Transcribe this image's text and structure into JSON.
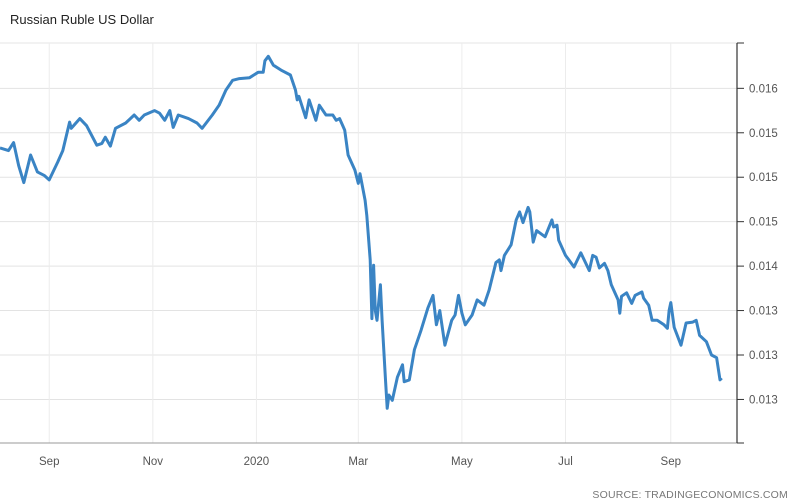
{
  "chart_data": {
    "type": "line",
    "title": "Russian Ruble US Dollar",
    "source": "SOURCE: TRADINGECONOMICS.COM",
    "xlabel": "",
    "ylabel": "",
    "line_color": "#3a84c4",
    "grid": true,
    "y_axis_side": "right",
    "xlim": [
      "2019-08-03",
      "2020-10-10"
    ],
    "ylim": [
      0.01201,
      0.01651
    ],
    "x_ticks": [
      {
        "date": "2019-09-01",
        "label": "Sep"
      },
      {
        "date": "2019-11-01",
        "label": "Nov"
      },
      {
        "date": "2020-01-01",
        "label": "2020"
      },
      {
        "date": "2020-03-01",
        "label": "Mar"
      },
      {
        "date": "2020-05-01",
        "label": "May"
      },
      {
        "date": "2020-07-01",
        "label": "Jul"
      },
      {
        "date": "2020-09-01",
        "label": "Sep"
      }
    ],
    "y_ticks": [
      {
        "value": 0.016,
        "label": "0.016"
      },
      {
        "value": 0.0155,
        "label": "0.015"
      },
      {
        "value": 0.015,
        "label": "0.015"
      },
      {
        "value": 0.0145,
        "label": "0.015"
      },
      {
        "value": 0.014,
        "label": "0.014"
      },
      {
        "value": 0.0135,
        "label": "0.013"
      },
      {
        "value": 0.013,
        "label": "0.013"
      },
      {
        "value": 0.0125,
        "label": "0.013"
      }
    ],
    "series": [
      {
        "x": [
          "2019-08-03",
          "2019-08-08",
          "2019-08-11",
          "2019-08-14",
          "2019-08-17",
          "2019-08-21",
          "2019-08-25",
          "2019-08-29",
          "2019-09-01",
          "2019-09-06",
          "2019-09-09",
          "2019-09-13",
          "2019-09-14",
          "2019-09-19",
          "2019-09-23",
          "2019-09-29",
          "2019-10-02",
          "2019-10-04",
          "2019-10-07",
          "2019-10-10",
          "2019-10-16",
          "2019-10-21",
          "2019-10-24",
          "2019-10-27",
          "2019-11-02",
          "2019-11-05",
          "2019-11-08",
          "2019-11-11",
          "2019-11-13",
          "2019-11-16",
          "2019-11-22",
          "2019-11-27",
          "2019-11-30",
          "2019-12-06",
          "2019-12-10",
          "2019-12-14",
          "2019-12-18",
          "2019-12-22",
          "2019-12-28",
          "2020-01-02",
          "2020-01-05",
          "2020-01-06",
          "2020-01-08",
          "2020-01-11",
          "2020-01-16",
          "2020-01-21",
          "2020-01-24",
          "2020-01-25",
          "2020-01-26",
          "2020-01-30",
          "2020-02-01",
          "2020-02-05",
          "2020-02-07",
          "2020-02-11",
          "2020-02-15",
          "2020-02-17",
          "2020-02-19",
          "2020-02-22",
          "2020-02-24",
          "2020-02-28",
          "2020-03-01",
          "2020-03-02",
          "2020-03-05",
          "2020-03-06",
          "2020-03-08",
          "2020-03-09",
          "2020-03-10",
          "2020-03-11",
          "2020-03-12",
          "2020-03-14",
          "2020-03-15",
          "2020-03-17",
          "2020-03-18",
          "2020-03-19",
          "2020-03-21",
          "2020-03-24",
          "2020-03-27",
          "2020-03-28",
          "2020-03-31",
          "2020-04-03",
          "2020-04-07",
          "2020-04-11",
          "2020-04-14",
          "2020-04-16",
          "2020-04-18",
          "2020-04-21",
          "2020-04-25",
          "2020-04-27",
          "2020-04-29",
          "2020-05-01",
          "2020-05-03",
          "2020-05-07",
          "2020-05-10",
          "2020-05-14",
          "2020-05-17",
          "2020-05-21",
          "2020-05-23",
          "2020-05-24",
          "2020-05-26",
          "2020-05-30",
          "2020-06-02",
          "2020-06-04",
          "2020-06-06",
          "2020-06-09",
          "2020-06-10",
          "2020-06-12",
          "2020-06-14",
          "2020-06-19",
          "2020-06-23",
          "2020-06-24",
          "2020-06-26",
          "2020-06-27",
          "2020-07-01",
          "2020-07-03",
          "2020-07-06",
          "2020-07-10",
          "2020-07-15",
          "2020-07-17",
          "2020-07-19",
          "2020-07-21",
          "2020-07-24",
          "2020-07-26",
          "2020-07-28",
          "2020-08-01",
          "2020-08-02",
          "2020-08-03",
          "2020-08-06",
          "2020-08-09",
          "2020-08-11",
          "2020-08-15",
          "2020-08-16",
          "2020-08-19",
          "2020-08-21",
          "2020-08-24",
          "2020-08-28",
          "2020-08-30",
          "2020-08-31",
          "2020-09-01",
          "2020-09-03",
          "2020-09-07",
          "2020-09-10",
          "2020-09-14",
          "2020-09-16",
          "2020-09-18",
          "2020-09-22",
          "2020-09-25",
          "2020-09-28",
          "2020-09-30",
          "2020-10-01"
        ],
        "values": [
          0.01533,
          0.0153,
          0.01539,
          0.01513,
          0.01494,
          0.01525,
          0.01506,
          0.01502,
          0.01497,
          0.01517,
          0.0153,
          0.01562,
          0.01555,
          0.01566,
          0.01558,
          0.01536,
          0.01538,
          0.01545,
          0.01535,
          0.01555,
          0.01561,
          0.0157,
          0.01564,
          0.0157,
          0.01575,
          0.01572,
          0.01564,
          0.01575,
          0.01556,
          0.0157,
          0.01566,
          0.01561,
          0.01555,
          0.0157,
          0.01581,
          0.01598,
          0.01609,
          0.01611,
          0.01612,
          0.01618,
          0.01618,
          0.01631,
          0.01636,
          0.01626,
          0.0162,
          0.01615,
          0.01598,
          0.01587,
          0.01591,
          0.01567,
          0.01587,
          0.01564,
          0.01581,
          0.0157,
          0.0157,
          0.01564,
          0.01566,
          0.01553,
          0.01525,
          0.01508,
          0.01493,
          0.01504,
          0.01474,
          0.01457,
          0.01407,
          0.01341,
          0.01401,
          0.0135,
          0.01339,
          0.01379,
          0.01339,
          0.01272,
          0.0124,
          0.01255,
          0.01249,
          0.01275,
          0.01289,
          0.0127,
          0.01272,
          0.01306,
          0.01328,
          0.01353,
          0.01367,
          0.01334,
          0.0135,
          0.01311,
          0.01339,
          0.01345,
          0.01367,
          0.01347,
          0.01334,
          0.01345,
          0.01362,
          0.01356,
          0.01373,
          0.01404,
          0.01407,
          0.01395,
          0.01412,
          0.01424,
          0.01452,
          0.01461,
          0.01449,
          0.01466,
          0.01461,
          0.01427,
          0.0144,
          0.01433,
          0.01452,
          0.01444,
          0.01446,
          0.01429,
          0.01412,
          0.01407,
          0.01399,
          0.01415,
          0.01395,
          0.01412,
          0.0141,
          0.01398,
          0.01403,
          0.01395,
          0.01379,
          0.01362,
          0.01347,
          0.01366,
          0.0137,
          0.01358,
          0.01367,
          0.01371,
          0.01364,
          0.01356,
          0.01339,
          0.01339,
          0.01334,
          0.0133,
          0.0135,
          0.01359,
          0.01331,
          0.01311,
          0.01336,
          0.01337,
          0.01339,
          0.01322,
          0.01315,
          0.013,
          0.01297,
          0.01272,
          0.01274
        ]
      }
    ]
  }
}
